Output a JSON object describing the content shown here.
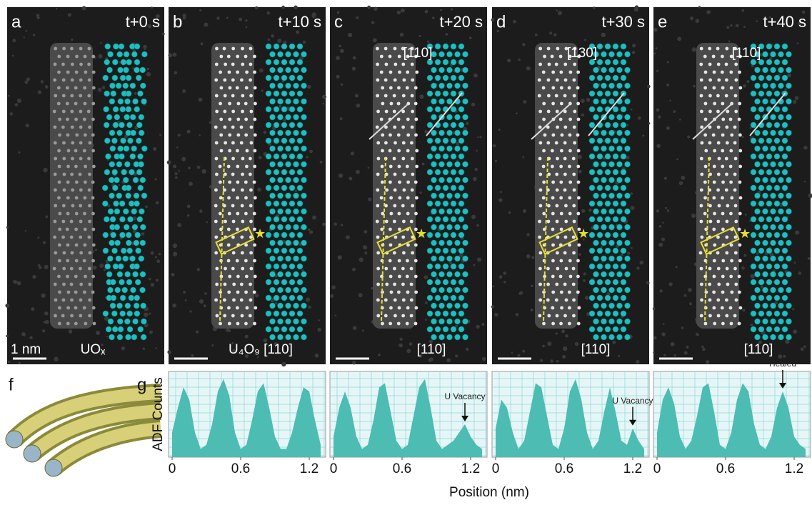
{
  "panels": [
    {
      "letter": "a",
      "time": "t+0 s",
      "labels": [
        "UOₓ",
        "1 nm"
      ]
    },
    {
      "letter": "b",
      "time": "t+10 s",
      "labels": [
        "U₄O₉ [110]"
      ]
    },
    {
      "letter": "c",
      "time": "t+20 s",
      "labels": [
        "[110]",
        "[110]"
      ]
    },
    {
      "letter": "d",
      "time": "t+30 s",
      "labels": [
        "[130]",
        "[110]"
      ]
    },
    {
      "letter": "e",
      "time": "t+40 s",
      "labels": [
        "[110]",
        "[110]"
      ]
    }
  ],
  "figure": {
    "f_letter": "f",
    "g_letter": "g",
    "xlabel": "Position (nm)",
    "ylabel": "ADF Counts"
  },
  "chart_data": [
    {
      "type": "area",
      "color": "#4dbcb3",
      "xlim": [
        0,
        1.35
      ],
      "xticks": [
        0,
        0.6,
        1.2
      ],
      "ylim": [
        0,
        1
      ],
      "x": [
        0,
        0.05,
        0.1,
        0.15,
        0.2,
        0.25,
        0.3,
        0.35,
        0.4,
        0.45,
        0.5,
        0.55,
        0.6,
        0.65,
        0.7,
        0.75,
        0.8,
        0.85,
        0.9,
        0.95,
        1.0,
        1.05,
        1.1,
        1.15,
        1.2,
        1.25,
        1.3
      ],
      "values": [
        0.3,
        0.6,
        0.85,
        0.7,
        0.3,
        0.1,
        0.15,
        0.4,
        0.8,
        0.95,
        0.75,
        0.3,
        0.1,
        0.15,
        0.45,
        0.8,
        0.9,
        0.6,
        0.25,
        0.1,
        0.1,
        0.3,
        0.6,
        0.85,
        0.8,
        0.45,
        0.15
      ]
    },
    {
      "type": "area",
      "color": "#4dbcb3",
      "xlim": [
        0,
        1.35
      ],
      "xticks": [
        0,
        0.6,
        1.2
      ],
      "ylim": [
        0,
        1
      ],
      "annotation": "U Vacancy",
      "x": [
        0,
        0.05,
        0.1,
        0.15,
        0.2,
        0.25,
        0.3,
        0.35,
        0.4,
        0.45,
        0.5,
        0.55,
        0.6,
        0.65,
        0.7,
        0.75,
        0.8,
        0.85,
        0.9,
        0.95,
        1.0,
        1.05,
        1.1,
        1.15,
        1.2,
        1.25,
        1.3
      ],
      "values": [
        0.25,
        0.6,
        0.8,
        0.6,
        0.25,
        0.1,
        0.15,
        0.45,
        0.85,
        0.9,
        0.55,
        0.2,
        0.1,
        0.15,
        0.5,
        0.85,
        0.95,
        0.6,
        0.2,
        0.1,
        0.15,
        0.2,
        0.3,
        0.4,
        0.25,
        0.15,
        0.1
      ]
    },
    {
      "type": "area",
      "color": "#4dbcb3",
      "xlim": [
        0,
        1.35
      ],
      "xticks": [
        0,
        0.6,
        1.2
      ],
      "ylim": [
        0,
        1
      ],
      "annotation": "U Vacancy",
      "x": [
        0,
        0.05,
        0.1,
        0.15,
        0.2,
        0.25,
        0.3,
        0.35,
        0.4,
        0.45,
        0.5,
        0.55,
        0.6,
        0.65,
        0.7,
        0.75,
        0.8,
        0.85,
        0.9,
        0.95,
        1.0,
        1.05,
        1.1,
        1.15,
        1.2,
        1.25,
        1.3
      ],
      "values": [
        0.35,
        0.7,
        0.6,
        0.3,
        0.1,
        0.2,
        0.55,
        0.9,
        0.85,
        0.5,
        0.15,
        0.1,
        0.35,
        0.8,
        0.95,
        0.7,
        0.3,
        0.1,
        0.2,
        0.55,
        0.85,
        0.55,
        0.2,
        0.15,
        0.35,
        0.2,
        0.1
      ]
    },
    {
      "type": "area",
      "color": "#4dbcb3",
      "xlim": [
        0,
        1.35
      ],
      "xticks": [
        0,
        0.6,
        1.2
      ],
      "ylim": [
        0,
        1
      ],
      "annotation": "Healed",
      "x": [
        0,
        0.05,
        0.1,
        0.15,
        0.2,
        0.25,
        0.3,
        0.35,
        0.4,
        0.45,
        0.5,
        0.55,
        0.6,
        0.65,
        0.7,
        0.75,
        0.8,
        0.85,
        0.9,
        0.95,
        1.0,
        1.05,
        1.1,
        1.15,
        1.2,
        1.25,
        1.3
      ],
      "values": [
        0.3,
        0.7,
        0.85,
        0.65,
        0.25,
        0.1,
        0.2,
        0.5,
        0.85,
        0.9,
        0.55,
        0.15,
        0.1,
        0.3,
        0.7,
        0.9,
        0.8,
        0.4,
        0.15,
        0.1,
        0.25,
        0.6,
        0.8,
        0.6,
        0.25,
        0.15,
        0.1
      ]
    }
  ]
}
